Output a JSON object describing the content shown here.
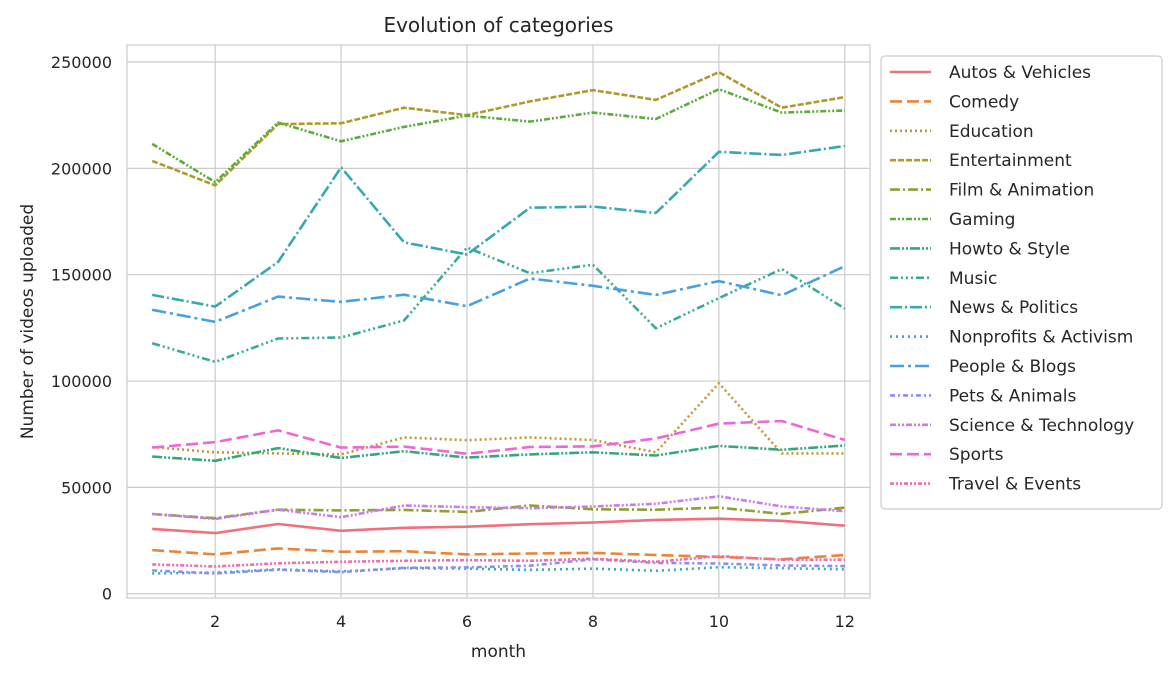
{
  "chart_data": {
    "type": "line",
    "title": "Evolution of categories",
    "xlabel": "month",
    "ylabel": "Number of videos uploaded",
    "xlim": [
      0.6,
      12.4
    ],
    "ylim": [
      -2000,
      258000
    ],
    "xticks": [
      2,
      4,
      6,
      8,
      10,
      12
    ],
    "yticks": [
      0,
      50000,
      100000,
      150000,
      200000,
      250000
    ],
    "grid": true,
    "legend_position": "outside-right",
    "x": [
      1,
      2,
      3,
      4,
      5,
      6,
      7,
      8,
      9,
      10,
      11,
      12
    ],
    "series": [
      {
        "name": "Autos & Vehicles",
        "color": "#f0707c",
        "dash": "solid",
        "values": [
          30500,
          28500,
          32800,
          29600,
          31000,
          31500,
          32700,
          33500,
          34700,
          35300,
          34300,
          32000
        ]
      },
      {
        "name": "Comedy",
        "color": "#e98538",
        "dash": "dashed",
        "values": [
          20500,
          18500,
          21300,
          19700,
          20000,
          18500,
          18900,
          19200,
          18200,
          17300,
          16200,
          18200
        ]
      },
      {
        "name": "Education",
        "color": "#c49536",
        "dash": "dotted",
        "values": [
          69000,
          66500,
          66000,
          65500,
          73500,
          72200,
          73500,
          72300,
          66500,
          99000,
          66000,
          66000
        ]
      },
      {
        "name": "Entertainment",
        "color": "#ad9b2f",
        "dash": "dashed-tight",
        "values": [
          203500,
          192000,
          220800,
          221200,
          228500,
          225000,
          231500,
          236800,
          232200,
          245200,
          228500,
          233500
        ]
      },
      {
        "name": "Film & Animation",
        "color": "#8fa131",
        "dash": "dashdot",
        "values": [
          37500,
          35500,
          39500,
          39200,
          39400,
          38500,
          41500,
          39700,
          39500,
          40500,
          37500,
          40500
        ]
      },
      {
        "name": "Gaming",
        "color": "#5aad3b",
        "dash": "dashdotdot",
        "values": [
          211500,
          193500,
          221500,
          212700,
          219500,
          224800,
          222000,
          226200,
          223200,
          237200,
          226200,
          227200
        ]
      },
      {
        "name": "Howto & Style",
        "color": "#35a77e",
        "dash": "dashdotdot-long",
        "values": [
          64500,
          62500,
          68500,
          63800,
          67000,
          64000,
          65500,
          66500,
          65000,
          69500,
          67700,
          69700
        ]
      },
      {
        "name": "Music",
        "color": "#37ab98",
        "dash": "dash-dot-dot-dot",
        "values": [
          117800,
          109000,
          120000,
          120500,
          128500,
          162800,
          150700,
          154700,
          124800,
          139000,
          152700,
          134000
        ]
      },
      {
        "name": "News & Politics",
        "color": "#36a9b0",
        "dash": "dashdot-long",
        "values": [
          140500,
          135000,
          156000,
          200500,
          165200,
          159500,
          181500,
          182000,
          179000,
          207800,
          206300,
          210500
        ]
      },
      {
        "name": "Nonprofits & Activism",
        "color": "#3aa7c4",
        "dash": "dot-spaced",
        "values": [
          9500,
          10000,
          11500,
          10500,
          12000,
          11800,
          11200,
          11800,
          10800,
          12500,
          12000,
          11500
        ]
      },
      {
        "name": "People & Blogs",
        "color": "#47a0e2",
        "dash": "dash-dot-long",
        "values": [
          133500,
          127800,
          139700,
          137200,
          140600,
          135200,
          148200,
          144800,
          140500,
          147000,
          140300,
          154000
        ]
      },
      {
        "name": "Pets & Animals",
        "color": "#8d8ff0",
        "dash": "dashdot-short",
        "values": [
          11000,
          9500,
          11300,
          10200,
          12200,
          12400,
          13200,
          16200,
          14500,
          14200,
          13300,
          13000
        ]
      },
      {
        "name": "Science & Technology",
        "color": "#c97cee",
        "dash": "dashdotdot",
        "values": [
          37500,
          35200,
          39500,
          36000,
          41500,
          40700,
          40200,
          41000,
          42300,
          45800,
          41000,
          38800
        ]
      },
      {
        "name": "Sports",
        "color": "#ee66d7",
        "dash": "dashed",
        "values": [
          68700,
          71300,
          76800,
          68700,
          69200,
          65800,
          69000,
          69300,
          73000,
          80000,
          81200,
          72300
        ]
      },
      {
        "name": "Travel & Events",
        "color": "#f26ca9",
        "dash": "dashdotdot-dense",
        "values": [
          13800,
          12800,
          14300,
          15000,
          15500,
          15800,
          15500,
          16500,
          15000,
          17700,
          16000,
          16000
        ]
      }
    ]
  }
}
